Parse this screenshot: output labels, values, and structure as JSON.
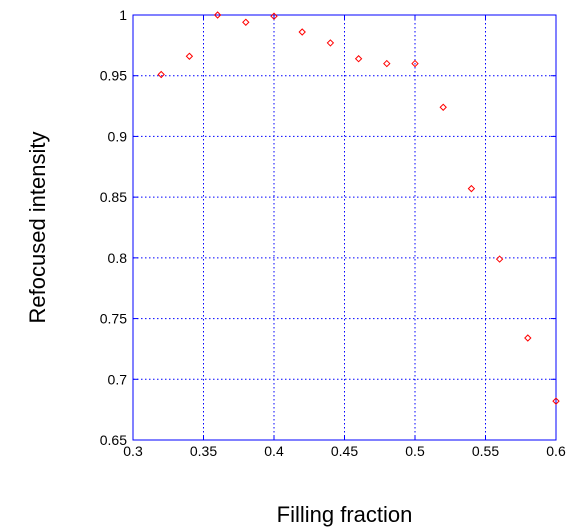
{
  "chart_data": {
    "type": "scatter",
    "title": "",
    "xlabel": "Filling fraction",
    "ylabel": "Refocused intensity",
    "xlim": [
      0.3,
      0.6
    ],
    "ylim": [
      0.65,
      1.0
    ],
    "grid": true,
    "x_ticks": [
      "0.3",
      "0.35",
      "0.4",
      "0.45",
      "0.5",
      "0.55",
      "0.6"
    ],
    "y_ticks": [
      "0.65",
      "0.7",
      "0.75",
      "0.8",
      "0.85",
      "0.9",
      "0.95",
      "1"
    ],
    "series": [
      {
        "x": [
          0.32,
          0.34,
          0.36,
          0.38,
          0.4,
          0.42,
          0.44,
          0.46,
          0.48,
          0.5,
          0.52,
          0.54,
          0.56,
          0.58,
          0.6
        ],
        "y": [
          0.951,
          0.966,
          1.0,
          0.994,
          0.999,
          0.986,
          0.977,
          0.964,
          0.96,
          0.96,
          0.924,
          0.857,
          0.799,
          0.734,
          0.682
        ],
        "color": "#ff0000",
        "marker": "diamond"
      }
    ],
    "colors": {
      "axes": "#0000ff",
      "points": "#ff0000"
    }
  }
}
